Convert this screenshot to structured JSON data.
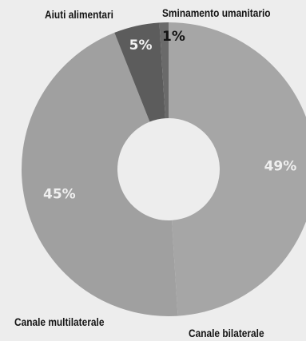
{
  "chart_data": {
    "type": "pie",
    "donut": true,
    "start_angle_deg": 0,
    "direction": "clockwise",
    "slices": [
      {
        "label": "Canale bilaterale",
        "value": 49,
        "value_label": "49%",
        "color": "#a6a6a6",
        "text_color": "#efefef"
      },
      {
        "label": "Canale multilaterale",
        "value": 45,
        "value_label": "45%",
        "color": "#a0a0a0",
        "text_color": "#efefef"
      },
      {
        "label": "Aiuti alimentari",
        "value": 5,
        "value_label": "5%",
        "color": "#5c5c5c",
        "text_color": "#f2f2f2"
      },
      {
        "label": "Sminamento umanitario",
        "value": 1,
        "value_label": "1%",
        "color": "#6a6a6a",
        "text_color": "#141414"
      }
    ]
  }
}
